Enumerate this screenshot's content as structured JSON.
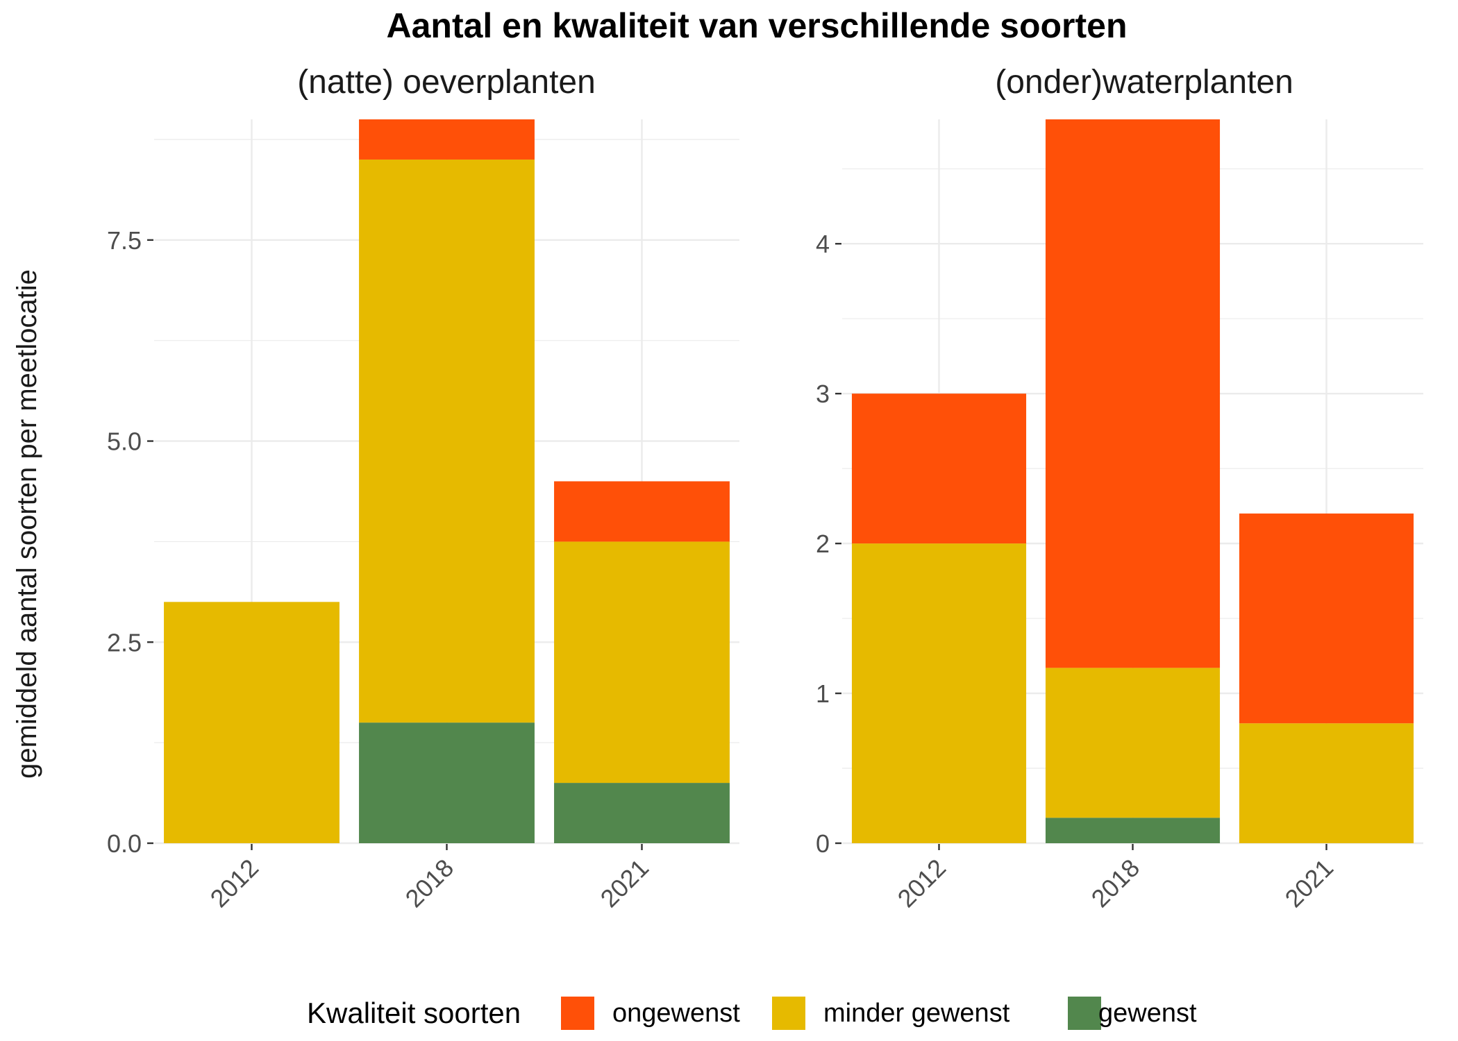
{
  "title": "Aantal en kwaliteit van verschillende soorten",
  "ylabel": "gemiddeld aantal soorten per meetlocatie",
  "legend": {
    "title": "Kwaliteit soorten",
    "position": "bottom",
    "items": [
      {
        "key": "ongewenst",
        "label": "ongewenst",
        "color": "#FF5008"
      },
      {
        "key": "minder_gewenst",
        "label": "minder gewenst",
        "color": "#E6BA00"
      },
      {
        "key": "gewenst",
        "label": "gewenst",
        "color": "#52874D"
      }
    ]
  },
  "chart_data": [
    {
      "type": "bar",
      "stacked": true,
      "title": "(natte) oeverplanten",
      "categories": [
        "2012",
        "2018",
        "2021"
      ],
      "ylim": [
        0,
        9
      ],
      "yticks": [
        "0.0",
        "2.5",
        "5.0",
        "7.5"
      ],
      "ytick_values": [
        0,
        2.5,
        5,
        7.5
      ],
      "grid": true,
      "series": [
        {
          "name": "gewenst",
          "color": "#52874D",
          "values": [
            0,
            1.5,
            0.75
          ]
        },
        {
          "name": "minder gewenst",
          "color": "#E6BA00",
          "values": [
            3.0,
            7.0,
            3.0
          ]
        },
        {
          "name": "ongewenst",
          "color": "#FF5008",
          "values": [
            0,
            0.5,
            0.75
          ]
        }
      ]
    },
    {
      "type": "bar",
      "stacked": true,
      "title": "(onder)waterplanten",
      "categories": [
        "2012",
        "2018",
        "2021"
      ],
      "ylim": [
        0,
        4.83
      ],
      "yticks": [
        "0",
        "1",
        "2",
        "3",
        "4"
      ],
      "ytick_values": [
        0,
        1,
        2,
        3,
        4
      ],
      "grid": true,
      "series": [
        {
          "name": "gewenst",
          "color": "#52874D",
          "values": [
            0,
            0.17,
            0
          ]
        },
        {
          "name": "minder gewenst",
          "color": "#E6BA00",
          "values": [
            2.0,
            1.0,
            0.8
          ]
        },
        {
          "name": "ongewenst",
          "color": "#FF5008",
          "values": [
            1.0,
            3.66,
            1.4
          ]
        }
      ]
    }
  ]
}
